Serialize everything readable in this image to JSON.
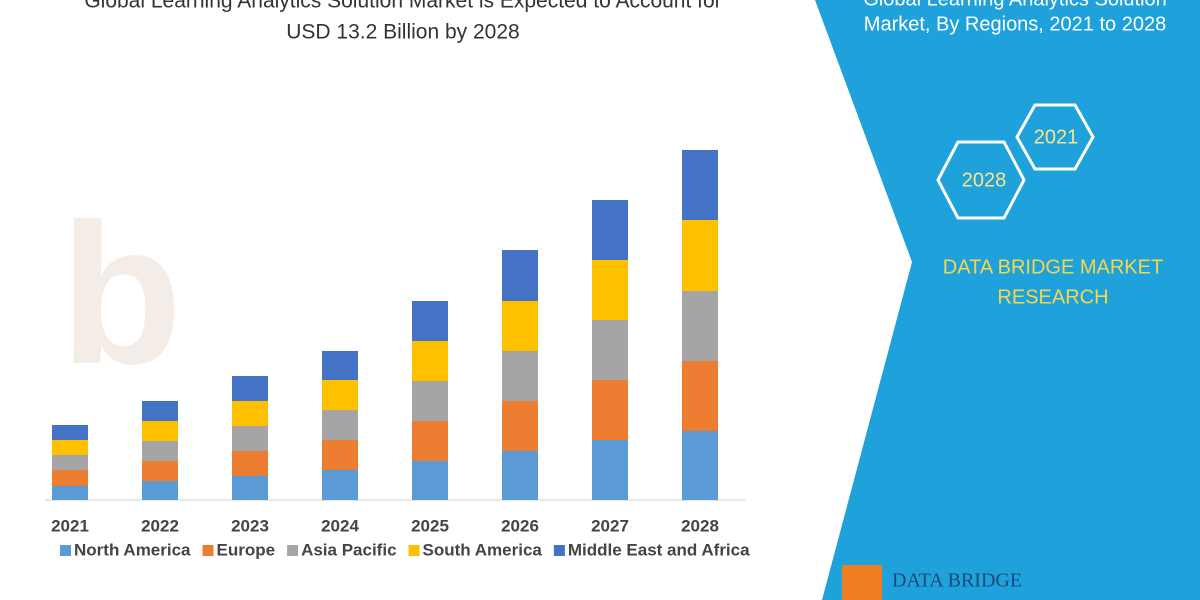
{
  "chart_data": {
    "type": "stacked_bar",
    "title_lines": [
      "Global Learning Analytics Solution Market is Expected to Account for",
      "USD 13.2 Billion by 2028"
    ],
    "categories": [
      "2021",
      "2022",
      "2023",
      "2024",
      "2025",
      "2026",
      "2027",
      "2028"
    ],
    "series": [
      {
        "name": "North America",
        "color": "#5b9bd5",
        "values": [
          14,
          19,
          24,
          30,
          39,
          49,
          60,
          69
        ]
      },
      {
        "name": "Europe",
        "color": "#ed7d31",
        "values": [
          16,
          20,
          25,
          30,
          40,
          50,
          60,
          70
        ]
      },
      {
        "name": "Asia Pacific",
        "color": "#a5a5a5",
        "values": [
          15,
          20,
          25,
          30,
          40,
          50,
          60,
          70
        ]
      },
      {
        "name": "South America",
        "color": "#ffc000",
        "values": [
          15,
          20,
          25,
          30,
          40,
          50,
          60,
          71
        ]
      },
      {
        "name": "Middle East and Africa",
        "color": "#4472c4",
        "values": [
          15,
          20,
          25,
          29,
          40,
          51,
          60,
          70
        ]
      }
    ],
    "ylim": [
      0,
      350
    ]
  },
  "panel": {
    "title_lines": [
      "Global Learning Analytics Solution",
      "Market, By Regions, 2021 to 2028"
    ],
    "hex_labels": [
      "2021",
      "2028"
    ],
    "brand_lines": [
      "DATA BRIDGE MARKET",
      "RESEARCH"
    ],
    "logo_text": "DATA BRIDGE"
  }
}
